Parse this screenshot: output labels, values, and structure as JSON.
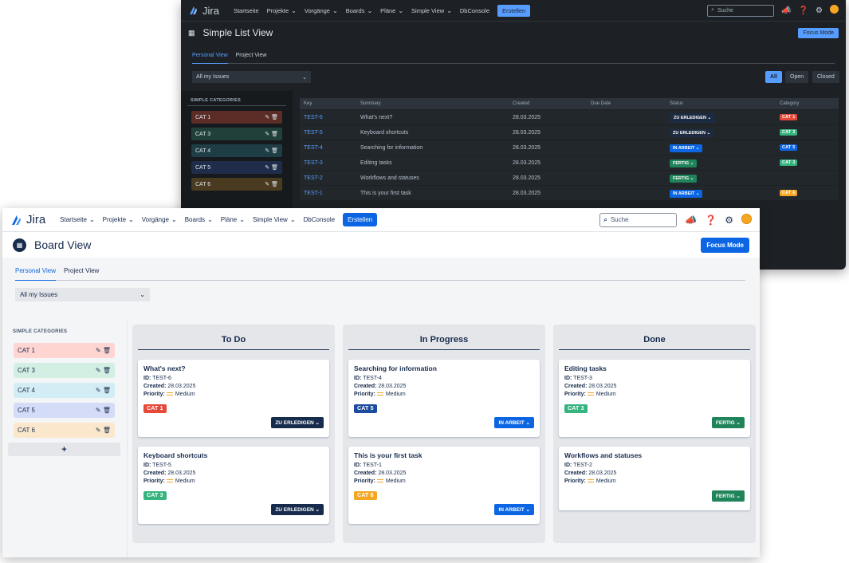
{
  "colors": {
    "dark_bg": "#1d2125",
    "accent_dark": "#579dff",
    "accent_light": "#0c66e4"
  },
  "dark": {
    "logo": "Jira",
    "nav": [
      "Startseite",
      "Projekte",
      "Vorgänge",
      "Boards",
      "Pläne",
      "Simple View",
      "DbConsole"
    ],
    "create_label": "Erstellen",
    "search_placeholder": "Suche",
    "title": "Simple List View",
    "focus_label": "Focus Mode",
    "tabs": [
      "Personal View",
      "Project View"
    ],
    "select_value": "All my Issues",
    "filters": [
      "All",
      "Open",
      "Closed"
    ],
    "sidebar_header": "SIMPLE CATEGORIES",
    "categories": [
      "CAT 1",
      "CAT 3",
      "CAT 4",
      "CAT 5",
      "CAT 6"
    ],
    "table": {
      "headers": [
        "Key",
        "Summary",
        "Created",
        "Due Date",
        "Status",
        "Category"
      ],
      "rows": [
        {
          "key": "TEST-6",
          "summary": "What's next?",
          "created": "28.03.2025",
          "due": "",
          "status": "ZU ERLEDIGEN",
          "category": "CAT 1"
        },
        {
          "key": "TEST-5",
          "summary": "Keyboard shortcuts",
          "created": "28.03.2025",
          "due": "",
          "status": "ZU ERLEDIGEN",
          "category": "CAT 3"
        },
        {
          "key": "TEST-4",
          "summary": "Searching for information",
          "created": "28.03.2025",
          "due": "",
          "status": "IN ARBEIT",
          "category": "CAT 5"
        },
        {
          "key": "TEST-3",
          "summary": "Editing tasks",
          "created": "28.03.2025",
          "due": "",
          "status": "FERTIG",
          "category": "CAT 3"
        },
        {
          "key": "TEST-2",
          "summary": "Workflows and statuses",
          "created": "28.03.2025",
          "due": "",
          "status": "FERTIG",
          "category": ""
        },
        {
          "key": "TEST-1",
          "summary": "This is your first task",
          "created": "28.03.2025",
          "due": "",
          "status": "IN ARBEIT",
          "category": "CAT 6"
        }
      ]
    }
  },
  "light": {
    "logo": "Jira",
    "nav": [
      "Startseite",
      "Projekte",
      "Vorgänge",
      "Boards",
      "Pläne",
      "Simple View",
      "DbConsole"
    ],
    "create_label": "Erstellen",
    "search_placeholder": "Suche",
    "title": "Board View",
    "focus_label": "Focus Mode",
    "tabs": [
      "Personal View",
      "Project View"
    ],
    "select_value": "All my Issues",
    "sidebar_header": "SIMPLE CATEGORIES",
    "categories": [
      "CAT 1",
      "CAT 3",
      "CAT 4",
      "CAT 5",
      "CAT 6"
    ],
    "add_label": "+",
    "labels": {
      "id": "ID:",
      "created": "Created:",
      "priority": "Priority:"
    },
    "columns": [
      {
        "title": "To Do",
        "cards": [
          {
            "title": "What's next?",
            "id": "TEST-6",
            "created": "28.03.2025",
            "priority": "Medium",
            "category": "CAT 1",
            "status": "ZU ERLEDIGEN"
          },
          {
            "title": "Keyboard shortcuts",
            "id": "TEST-5",
            "created": "28.03.2025",
            "priority": "Medium",
            "category": "CAT 3",
            "status": "ZU ERLEDIGEN"
          }
        ]
      },
      {
        "title": "In Progress",
        "cards": [
          {
            "title": "Searching for information",
            "id": "TEST-4",
            "created": "28.03.2025",
            "priority": "Medium",
            "category": "CAT 5",
            "status": "IN ARBEIT"
          },
          {
            "title": "This is your first task",
            "id": "TEST-1",
            "created": "28.03.2025",
            "priority": "Medium",
            "category": "CAT 6",
            "status": "IN ARBEIT"
          }
        ]
      },
      {
        "title": "Done",
        "cards": [
          {
            "title": "Editing tasks",
            "id": "TEST-3",
            "created": "28.03.2025",
            "priority": "Medium",
            "category": "CAT 3",
            "status": "FERTIG"
          },
          {
            "title": "Workflows and statuses",
            "id": "TEST-2",
            "created": "28.03.2025",
            "priority": "Medium",
            "category": "",
            "status": "FERTIG"
          }
        ]
      }
    ]
  }
}
